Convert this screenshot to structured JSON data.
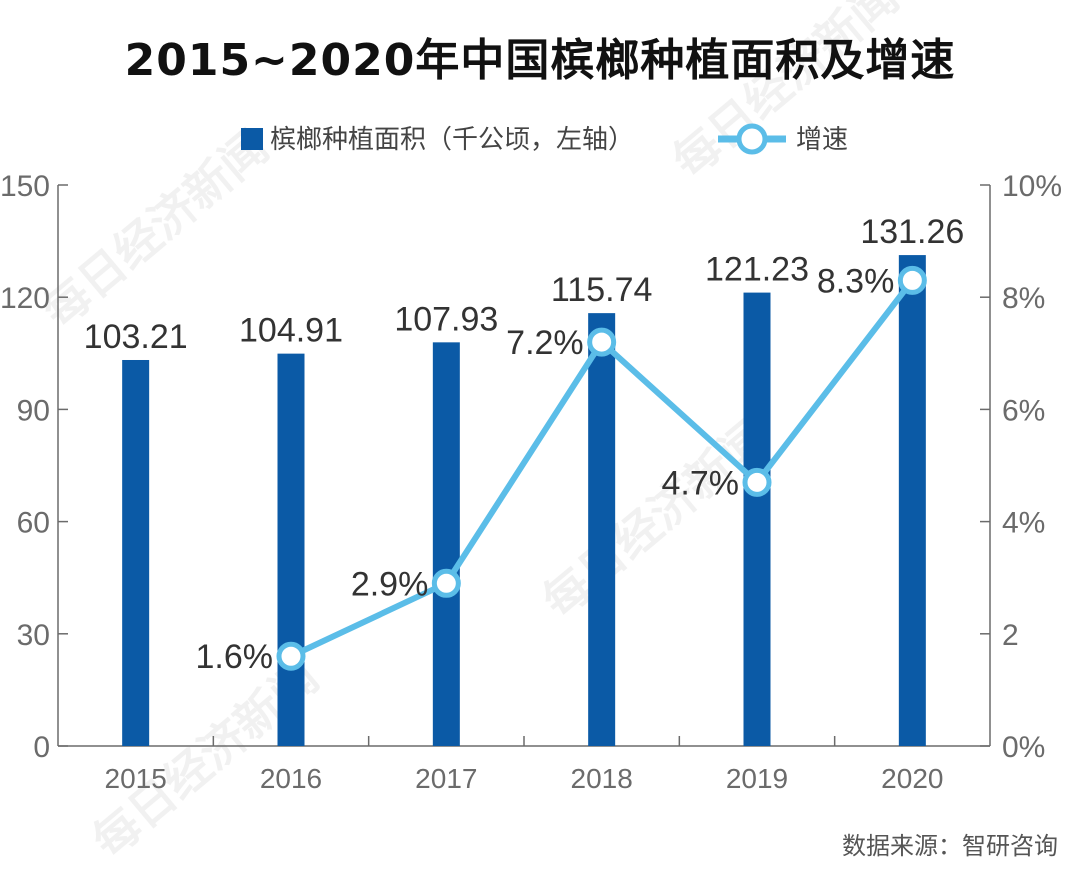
{
  "title": "2015~2020年中国槟榔种植面积及增速",
  "source": "数据来源：智研咨询",
  "watermark": "每日经济新闻",
  "colors": {
    "bar": "#0b5aa6",
    "line": "#5bbde8",
    "axis": "#6b6b6b",
    "text": "#333333"
  },
  "chart_data": {
    "type": "bar",
    "categories": [
      "2015",
      "2016",
      "2017",
      "2018",
      "2019",
      "2020"
    ],
    "series": [
      {
        "name": "槟榔种植面积（千公顷，左轴）",
        "type": "bar",
        "axis": "left",
        "values": [
          103.21,
          104.91,
          107.93,
          115.74,
          121.23,
          131.26
        ],
        "labels": [
          "103.21",
          "104.91",
          "107.93",
          "115.74",
          "121.23",
          "131.26"
        ]
      },
      {
        "name": "增速",
        "type": "line",
        "axis": "right",
        "values": [
          null,
          1.6,
          2.9,
          7.2,
          4.7,
          8.3
        ],
        "labels": [
          "",
          "1.6%",
          "2.9%",
          "7.2%",
          "4.7%",
          "8.3%"
        ]
      }
    ],
    "ylim_left": [
      0,
      150
    ],
    "ylim_right": [
      0,
      10
    ],
    "left_ticks": [
      "0",
      "30",
      "60",
      "90",
      "120",
      "150"
    ],
    "right_ticks": [
      "0%",
      "2",
      "4%",
      "6%",
      "8%",
      "10%"
    ],
    "legend_position": "top-center",
    "grid": false
  }
}
